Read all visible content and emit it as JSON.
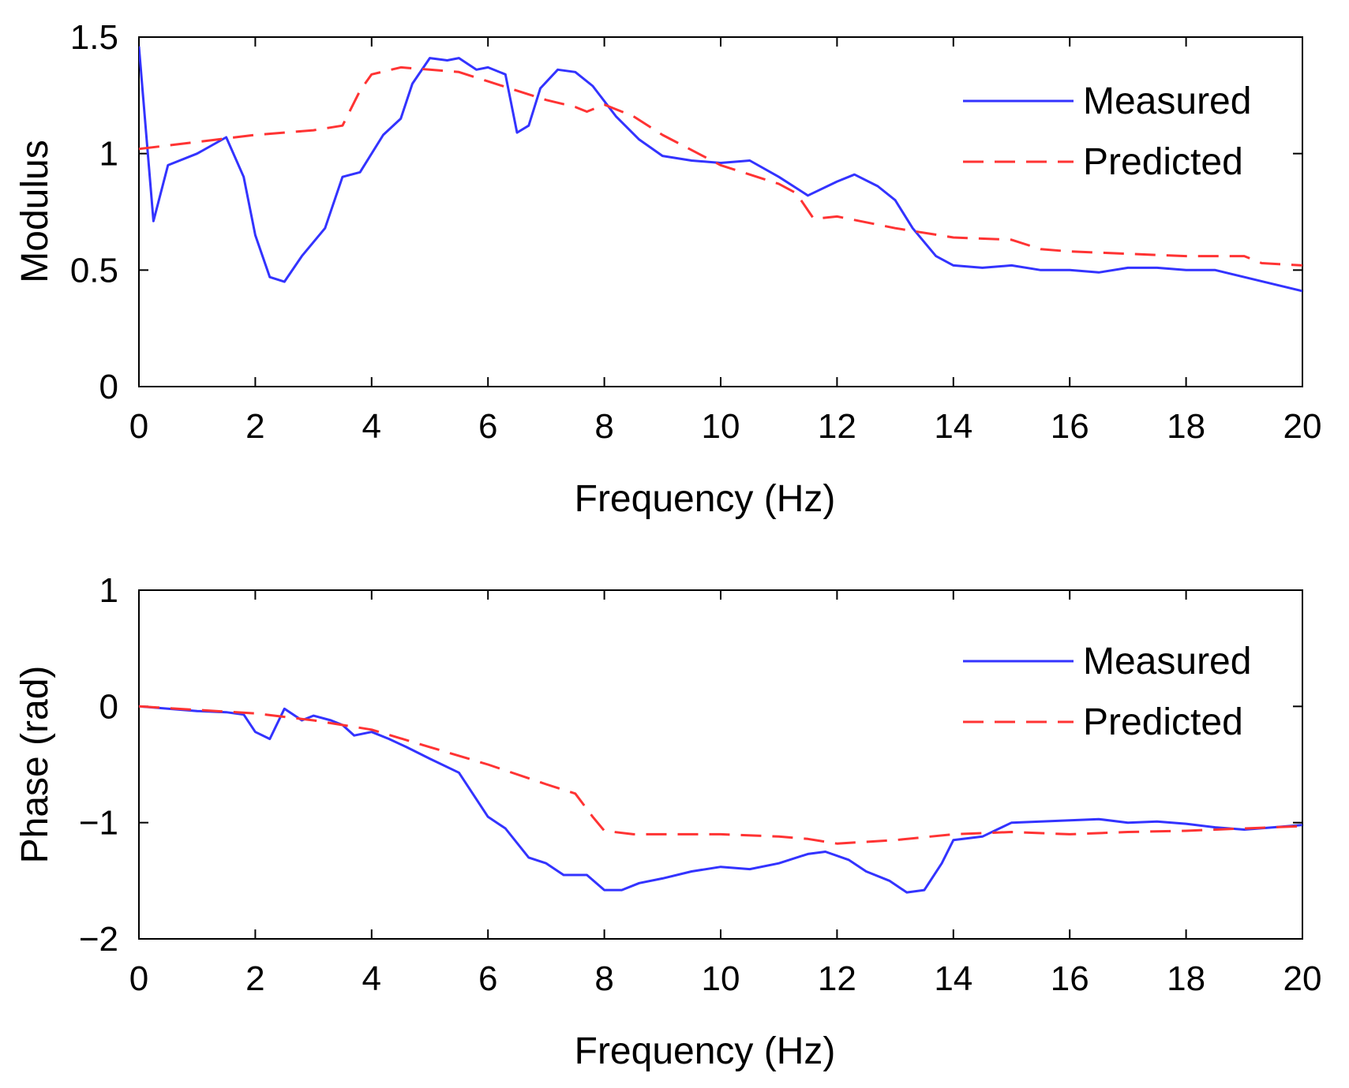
{
  "colors": {
    "measured": "#3333ff",
    "predicted": "#ff3333",
    "axis": "#000000",
    "background": "#ffffff"
  },
  "chart_data": [
    {
      "type": "line",
      "title": "",
      "xlabel": "Frequency (Hz)",
      "ylabel": "Modulus",
      "xlim": [
        0,
        20
      ],
      "ylim": [
        0,
        1.5
      ],
      "xticks": [
        0,
        2,
        4,
        6,
        8,
        10,
        12,
        14,
        16,
        18,
        20
      ],
      "xtick_labels": [
        "0",
        "2",
        "4",
        "6",
        "8",
        "10",
        "12",
        "14",
        "16",
        "18",
        "20"
      ],
      "yticks": [
        0,
        0.5,
        1,
        1.5
      ],
      "ytick_labels": [
        "0",
        "0.5",
        "1",
        "1.5"
      ],
      "grid": false,
      "legend_position": "top-right",
      "series": [
        {
          "name": "Measured",
          "style": "solid",
          "x": [
            0,
            0.25,
            0.5,
            1.0,
            1.5,
            1.8,
            2.0,
            2.25,
            2.5,
            2.8,
            3.2,
            3.5,
            3.8,
            4.2,
            4.5,
            4.7,
            5.0,
            5.3,
            5.5,
            5.8,
            6.0,
            6.3,
            6.5,
            6.7,
            6.9,
            7.2,
            7.5,
            7.8,
            8.2,
            8.6,
            9.0,
            9.5,
            10.0,
            10.5,
            11.0,
            11.5,
            12.0,
            12.3,
            12.7,
            13.0,
            13.3,
            13.7,
            14.0,
            14.5,
            15.0,
            15.5,
            16.0,
            16.5,
            17.0,
            17.5,
            18.0,
            18.5,
            19.0,
            19.5,
            20.0
          ],
          "values": [
            1.46,
            0.71,
            0.95,
            1.0,
            1.07,
            0.9,
            0.65,
            0.47,
            0.45,
            0.56,
            0.68,
            0.9,
            0.92,
            1.08,
            1.15,
            1.3,
            1.41,
            1.4,
            1.41,
            1.36,
            1.37,
            1.34,
            1.09,
            1.12,
            1.28,
            1.36,
            1.35,
            1.29,
            1.16,
            1.06,
            0.99,
            0.97,
            0.96,
            0.97,
            0.9,
            0.82,
            0.88,
            0.91,
            0.86,
            0.8,
            0.68,
            0.56,
            0.52,
            0.51,
            0.52,
            0.5,
            0.5,
            0.49,
            0.51,
            0.51,
            0.5,
            0.5,
            0.47,
            0.44,
            0.41
          ]
        },
        {
          "name": "Predicted",
          "style": "dashed",
          "x": [
            0,
            1.0,
            2.0,
            3.0,
            3.5,
            3.8,
            4.0,
            4.5,
            5.0,
            5.5,
            6.0,
            6.5,
            7.0,
            7.5,
            7.7,
            8.0,
            8.5,
            9.0,
            10.0,
            11.0,
            11.3,
            11.6,
            12.0,
            13.0,
            14.0,
            15.0,
            15.5,
            16.0,
            17.0,
            18.0,
            19.0,
            19.3,
            20.0
          ],
          "values": [
            1.02,
            1.05,
            1.08,
            1.1,
            1.12,
            1.27,
            1.34,
            1.37,
            1.36,
            1.35,
            1.31,
            1.27,
            1.23,
            1.2,
            1.18,
            1.21,
            1.16,
            1.08,
            0.95,
            0.87,
            0.83,
            0.72,
            0.73,
            0.68,
            0.64,
            0.63,
            0.59,
            0.58,
            0.57,
            0.56,
            0.56,
            0.53,
            0.52
          ]
        }
      ]
    },
    {
      "type": "line",
      "title": "",
      "xlabel": "Frequency (Hz)",
      "ylabel": "Phase (rad)",
      "xlim": [
        0,
        20
      ],
      "ylim": [
        -2,
        1
      ],
      "xticks": [
        0,
        2,
        4,
        6,
        8,
        10,
        12,
        14,
        16,
        18,
        20
      ],
      "xtick_labels": [
        "0",
        "2",
        "4",
        "6",
        "8",
        "10",
        "12",
        "14",
        "16",
        "18",
        "20"
      ],
      "yticks": [
        -2,
        -1,
        0,
        1
      ],
      "ytick_labels": [
        "−2",
        "−1",
        "0",
        "1"
      ],
      "grid": false,
      "legend_position": "top-right",
      "series": [
        {
          "name": "Measured",
          "style": "solid",
          "x": [
            0,
            0.5,
            1.0,
            1.5,
            1.8,
            2.0,
            2.25,
            2.5,
            2.8,
            3.0,
            3.3,
            3.5,
            3.7,
            4.0,
            4.3,
            4.6,
            5.0,
            5.5,
            6.0,
            6.3,
            6.7,
            7.0,
            7.3,
            7.7,
            8.0,
            8.3,
            8.6,
            9.0,
            9.5,
            10.0,
            10.5,
            11.0,
            11.5,
            11.8,
            12.2,
            12.5,
            12.9,
            13.2,
            13.5,
            13.8,
            14.0,
            14.5,
            15.0,
            15.5,
            16.0,
            16.5,
            17.0,
            17.5,
            18.0,
            18.5,
            19.0,
            19.5,
            20.0
          ],
          "values": [
            0.0,
            -0.02,
            -0.04,
            -0.05,
            -0.07,
            -0.22,
            -0.28,
            -0.02,
            -0.12,
            -0.08,
            -0.12,
            -0.16,
            -0.25,
            -0.22,
            -0.28,
            -0.35,
            -0.45,
            -0.57,
            -0.95,
            -1.05,
            -1.3,
            -1.35,
            -1.45,
            -1.45,
            -1.58,
            -1.58,
            -1.52,
            -1.48,
            -1.42,
            -1.38,
            -1.4,
            -1.35,
            -1.27,
            -1.25,
            -1.32,
            -1.42,
            -1.5,
            -1.6,
            -1.58,
            -1.35,
            -1.15,
            -1.12,
            -1.0,
            -0.99,
            -0.98,
            -0.97,
            -1.0,
            -0.99,
            -1.01,
            -1.04,
            -1.06,
            -1.04,
            -1.02
          ]
        },
        {
          "name": "Predicted",
          "style": "dashed",
          "x": [
            0,
            1.0,
            2.0,
            3.0,
            4.0,
            5.0,
            6.0,
            7.0,
            7.5,
            7.8,
            8.0,
            8.5,
            9.0,
            10.0,
            11.0,
            11.5,
            12.0,
            13.0,
            14.0,
            15.0,
            16.0,
            17.0,
            18.0,
            19.0,
            20.0
          ],
          "values": [
            0.0,
            -0.03,
            -0.06,
            -0.12,
            -0.2,
            -0.35,
            -0.5,
            -0.67,
            -0.75,
            -0.95,
            -1.07,
            -1.1,
            -1.1,
            -1.1,
            -1.12,
            -1.14,
            -1.18,
            -1.15,
            -1.1,
            -1.08,
            -1.1,
            -1.08,
            -1.07,
            -1.05,
            -1.03
          ]
        }
      ]
    }
  ]
}
